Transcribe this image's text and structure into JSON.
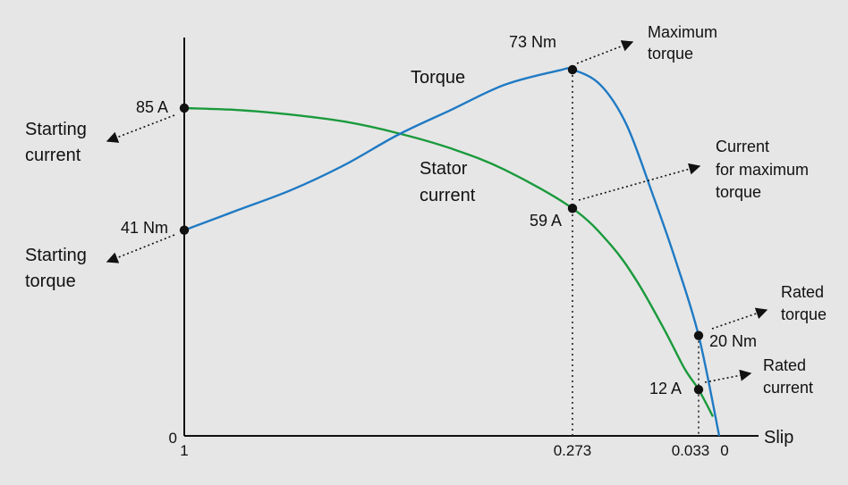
{
  "chart_data": {
    "type": "line",
    "x_axis": {
      "label": "Slip",
      "ticks": [
        "1",
        "0.273",
        "0.033",
        "0"
      ]
    },
    "y_axis": {
      "zero_label": "0"
    },
    "series": [
      {
        "name": "Torque",
        "color": "#1f7ac4",
        "points": [
          {
            "slip": 1.0,
            "value": 41
          },
          {
            "slip": 0.9,
            "value": 45
          },
          {
            "slip": 0.8,
            "value": 49
          },
          {
            "slip": 0.7,
            "value": 54
          },
          {
            "slip": 0.6,
            "value": 60
          },
          {
            "slip": 0.5,
            "value": 65
          },
          {
            "slip": 0.4,
            "value": 70
          },
          {
            "slip": 0.3,
            "value": 72.8
          },
          {
            "slip": 0.273,
            "value": 73
          },
          {
            "slip": 0.22,
            "value": 70
          },
          {
            "slip": 0.17,
            "value": 62
          },
          {
            "slip": 0.12,
            "value": 48
          },
          {
            "slip": 0.08,
            "value": 36
          },
          {
            "slip": 0.033,
            "value": 20
          },
          {
            "slip": 0.0,
            "value": 0
          }
        ]
      },
      {
        "name": "Stator current",
        "color": "#1a9a3c",
        "points": [
          {
            "slip": 1.0,
            "value": 85
          },
          {
            "slip": 0.9,
            "value": 84.5
          },
          {
            "slip": 0.8,
            "value": 83.3
          },
          {
            "slip": 0.7,
            "value": 81.5
          },
          {
            "slip": 0.6,
            "value": 78.5
          },
          {
            "slip": 0.5,
            "value": 74.5
          },
          {
            "slip": 0.4,
            "value": 69
          },
          {
            "slip": 0.273,
            "value": 59
          },
          {
            "slip": 0.2,
            "value": 49.5
          },
          {
            "slip": 0.15,
            "value": 40
          },
          {
            "slip": 0.1,
            "value": 28
          },
          {
            "slip": 0.06,
            "value": 17.5
          },
          {
            "slip": 0.033,
            "value": 12
          },
          {
            "slip": 0.01,
            "value": 5
          }
        ]
      }
    ],
    "points": [
      {
        "id": "starting-current",
        "series": "current",
        "slip": 1.0,
        "value": 85,
        "value_label": "85 A",
        "callout": [
          "Starting",
          "current"
        ]
      },
      {
        "id": "starting-torque",
        "series": "torque",
        "slip": 1.0,
        "value": 41,
        "value_label": "41 Nm",
        "callout": [
          "Starting",
          "torque"
        ]
      },
      {
        "id": "max-torque",
        "series": "torque",
        "slip": 0.273,
        "value": 73,
        "value_label": "73 Nm",
        "callout": [
          "Maximum",
          "torque"
        ]
      },
      {
        "id": "current-max-torque",
        "series": "current",
        "slip": 0.273,
        "value": 59,
        "value_label": "59 A",
        "callout": [
          "Current",
          "for maximum",
          "torque"
        ]
      },
      {
        "id": "rated-torque",
        "series": "torque",
        "slip": 0.033,
        "value": 20,
        "value_label": "20 Nm",
        "callout": [
          "Rated",
          "torque"
        ]
      },
      {
        "id": "rated-current",
        "series": "current",
        "slip": 0.033,
        "value": 12,
        "value_label": "12 A",
        "callout": [
          "Rated",
          "current"
        ]
      }
    ],
    "curve_labels": {
      "torque": [
        "Torque"
      ],
      "current": [
        "Stator",
        "current"
      ]
    },
    "grid": false,
    "legend": "none"
  }
}
